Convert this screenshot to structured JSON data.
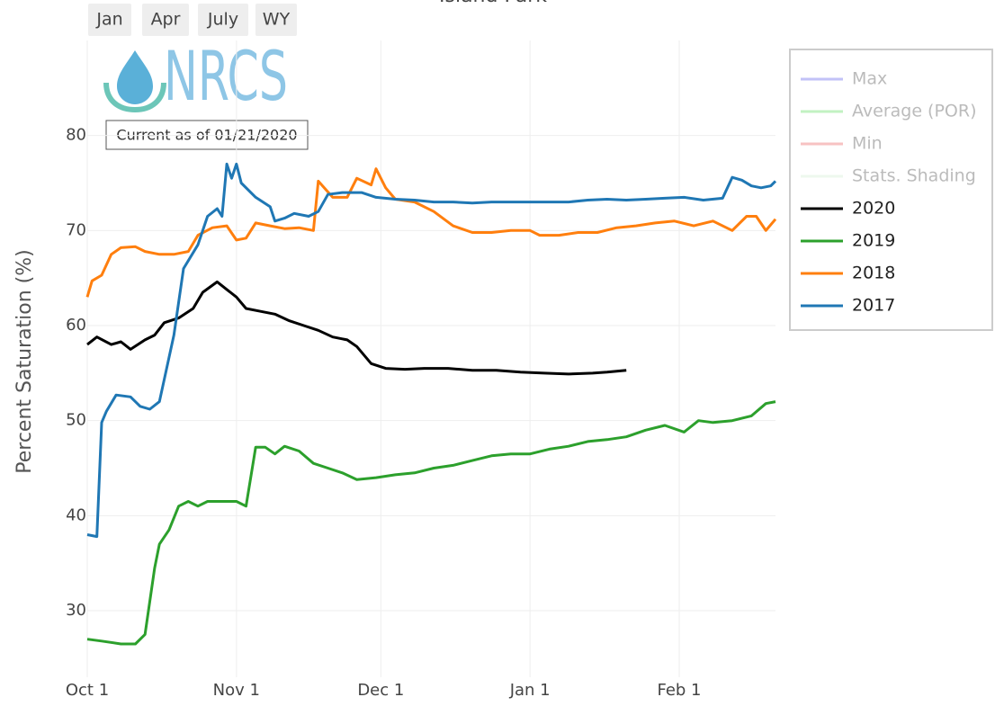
{
  "chart_data": {
    "type": "line",
    "title": "Island Park",
    "buttons": [
      "Jan",
      "Apr",
      "July",
      "WY"
    ],
    "logo": "NRCS",
    "annotation": "Current as of 01/21/2020",
    "y_label": "Percent Saturation (%)",
    "xlim": [
      0,
      143
    ],
    "xticks": [
      {
        "value": 0,
        "label": "Oct 1"
      },
      {
        "value": 31,
        "label": "Nov 1"
      },
      {
        "value": 61,
        "label": "Dec 1"
      },
      {
        "value": 92,
        "label": "Jan 1"
      },
      {
        "value": 123,
        "label": "Feb 1"
      }
    ],
    "ylim": [
      23,
      90
    ],
    "yticks": [
      30,
      40,
      50,
      60,
      70,
      80
    ],
    "grid": true,
    "legend": "right",
    "series": [
      {
        "name": "Max",
        "color": "#c2c2f7",
        "x": [],
        "values": []
      },
      {
        "name": "Average (POR)",
        "color": "#c2f2c2",
        "x": [],
        "values": []
      },
      {
        "name": "Min",
        "color": "#f7c2c2",
        "x": [],
        "values": []
      },
      {
        "name": "Stats. Shading",
        "color": "#eef8ee",
        "x": [],
        "values": []
      },
      {
        "name": "2020",
        "color": "#000000",
        "x": [
          0,
          2,
          5,
          7,
          9,
          12,
          14,
          16,
          19,
          22,
          24,
          27,
          29,
          31,
          33,
          36,
          39,
          42,
          45,
          48,
          51,
          54,
          56,
          59,
          62,
          66,
          70,
          75,
          80,
          85,
          90,
          95,
          100,
          105,
          108,
          112
        ],
        "values": [
          58,
          58.8,
          58,
          58.3,
          57.5,
          58.5,
          59,
          60.3,
          60.8,
          61.8,
          63.5,
          64.6,
          63.8,
          63,
          61.8,
          61.5,
          61.2,
          60.5,
          60,
          59.5,
          58.8,
          58.5,
          57.8,
          56,
          55.5,
          55.4,
          55.5,
          55.5,
          55.3,
          55.3,
          55.1,
          55,
          54.9,
          55,
          55.1,
          55.3
        ]
      },
      {
        "name": "2019",
        "color": "#2ca02c",
        "x": [
          0,
          3,
          7,
          10,
          12,
          14,
          15,
          17,
          19,
          21,
          23,
          25,
          28,
          31,
          33,
          35,
          37,
          39,
          41,
          44,
          47,
          50,
          53,
          56,
          60,
          64,
          68,
          72,
          76,
          80,
          84,
          88,
          92,
          96,
          100,
          104,
          108,
          112,
          116,
          120,
          124,
          127,
          130,
          134,
          138,
          141,
          143
        ],
        "values": [
          27,
          26.8,
          26.5,
          26.5,
          27.5,
          34.5,
          37,
          38.5,
          41,
          41.5,
          41,
          41.5,
          41.5,
          41.5,
          41,
          47.2,
          47.2,
          46.5,
          47.3,
          46.8,
          45.5,
          45,
          44.5,
          43.8,
          44,
          44.3,
          44.5,
          45,
          45.3,
          45.8,
          46.3,
          46.5,
          46.5,
          47,
          47.3,
          47.8,
          48,
          48.3,
          49,
          49.5,
          48.8,
          50,
          49.8,
          50,
          50.5,
          51.8,
          52
        ]
      },
      {
        "name": "2018",
        "color": "#ff7f0e",
        "x": [
          0,
          1,
          3,
          5,
          7,
          10,
          12,
          15,
          18,
          21,
          23,
          26,
          29,
          31,
          33,
          35,
          38,
          41,
          44,
          47,
          48,
          51,
          54,
          56,
          59,
          60,
          62,
          64,
          68,
          72,
          76,
          80,
          84,
          88,
          92,
          94,
          98,
          102,
          106,
          110,
          114,
          118,
          122,
          126,
          130,
          134,
          137,
          139,
          141,
          143
        ],
        "values": [
          63,
          64.7,
          65.3,
          67.5,
          68.2,
          68.3,
          67.8,
          67.5,
          67.5,
          67.8,
          69.5,
          70.3,
          70.5,
          69,
          69.2,
          70.8,
          70.5,
          70.2,
          70.3,
          70,
          75.2,
          73.5,
          73.5,
          75.5,
          74.8,
          76.5,
          74.5,
          73.3,
          73,
          72,
          70.5,
          69.8,
          69.8,
          70,
          70,
          69.5,
          69.5,
          69.8,
          69.8,
          70.3,
          70.5,
          70.8,
          71,
          70.5,
          71,
          70,
          71.5,
          71.5,
          70,
          71.2
        ]
      },
      {
        "name": "2017",
        "color": "#1f77b4",
        "x": [
          0,
          2,
          3,
          4,
          6,
          9,
          11,
          13,
          15,
          18,
          20,
          23,
          25,
          27,
          28,
          29,
          30,
          31,
          32,
          35,
          38,
          39,
          41,
          43,
          46,
          48,
          50,
          53,
          57,
          60,
          64,
          68,
          72,
          76,
          80,
          84,
          88,
          92,
          96,
          100,
          104,
          108,
          112,
          116,
          120,
          124,
          128,
          132,
          134,
          136,
          138,
          140,
          142,
          143
        ],
        "values": [
          38,
          37.8,
          49.8,
          51,
          52.7,
          52.5,
          51.5,
          51.2,
          52,
          59,
          66,
          68.5,
          71.5,
          72.3,
          71.5,
          77,
          75.5,
          77,
          75,
          73.5,
          72.5,
          71,
          71.3,
          71.8,
          71.5,
          72,
          73.8,
          74,
          74,
          73.5,
          73.3,
          73.2,
          73,
          73,
          72.9,
          73,
          73,
          73,
          73,
          73,
          73.2,
          73.3,
          73.2,
          73.3,
          73.4,
          73.5,
          73.2,
          73.4,
          75.6,
          75.3,
          74.7,
          74.5,
          74.7,
          75.2
        ]
      }
    ]
  }
}
